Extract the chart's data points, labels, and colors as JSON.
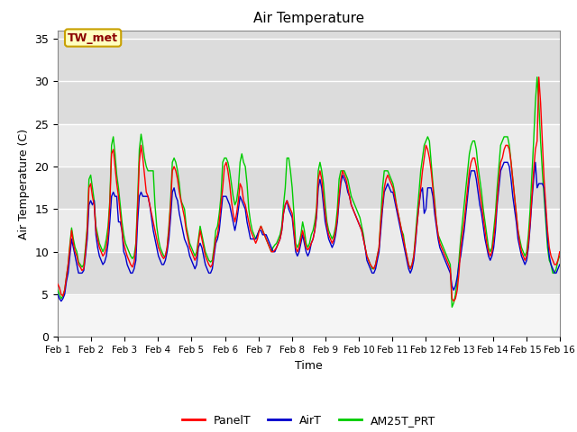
{
  "title": "Air Temperature",
  "xlabel": "Time",
  "ylabel": "Air Temperature (C)",
  "ylim": [
    0,
    36
  ],
  "yticks": [
    0,
    5,
    10,
    15,
    20,
    25,
    30,
    35
  ],
  "x_labels": [
    "Feb 1",
    "Feb 2",
    "Feb 3",
    "Feb 4",
    "Feb 5",
    "Feb 6",
    "Feb 7",
    "Feb 8",
    "Feb 9",
    "Feb 10",
    "Feb 11",
    "Feb 12",
    "Feb 13",
    "Feb 14",
    "Feb 15",
    "Feb 16"
  ],
  "annotation_text": "TW_met",
  "annotation_color": "#8B0000",
  "annotation_bg": "#FFFFC0",
  "annotation_border": "#C8A000",
  "panel_color": "#FF0000",
  "air_color": "#0000CC",
  "am25t_color": "#00CC00",
  "bands": [
    {
      "y": [
        25,
        36
      ],
      "color": "#DCDCDC"
    },
    {
      "y": [
        20,
        25
      ],
      "color": "#EBEBEB"
    },
    {
      "y": [
        15,
        20
      ],
      "color": "#DCDCDC"
    },
    {
      "y": [
        10,
        15
      ],
      "color": "#EBEBEB"
    },
    {
      "y": [
        5,
        10
      ],
      "color": "#DCDCDC"
    }
  ],
  "bg_color": "#FFFFFF",
  "plot_bg": "#F5F5F5",
  "legend_labels": [
    "PanelT",
    "AirT",
    "AM25T_PRT"
  ],
  "panel_data": [
    6.2,
    5.8,
    5.0,
    4.8,
    5.5,
    7.0,
    8.5,
    10.5,
    12.5,
    11.0,
    10.0,
    9.5,
    8.5,
    8.2,
    7.8,
    8.0,
    10.0,
    12.5,
    17.5,
    18.0,
    16.5,
    15.5,
    12.5,
    11.5,
    10.5,
    10.0,
    9.5,
    9.8,
    10.5,
    12.0,
    15.5,
    21.5,
    22.0,
    20.0,
    18.0,
    16.5,
    14.5,
    12.5,
    11.0,
    10.2,
    9.5,
    9.0,
    8.5,
    8.2,
    8.8,
    10.5,
    15.0,
    20.5,
    22.5,
    21.0,
    19.0,
    17.0,
    16.5,
    15.5,
    14.5,
    13.5,
    12.5,
    11.5,
    10.5,
    10.0,
    9.5,
    9.2,
    9.5,
    10.5,
    12.5,
    15.5,
    19.5,
    20.0,
    19.5,
    18.5,
    17.0,
    16.0,
    15.0,
    14.0,
    12.5,
    11.5,
    10.5,
    10.0,
    9.5,
    9.0,
    9.5,
    11.0,
    12.5,
    11.5,
    10.5,
    9.5,
    9.0,
    8.5,
    8.2,
    8.5,
    10.0,
    11.5,
    12.0,
    13.5,
    15.5,
    17.5,
    20.0,
    20.5,
    19.5,
    18.0,
    16.0,
    14.5,
    13.5,
    14.5,
    16.0,
    18.0,
    17.5,
    16.0,
    15.5,
    14.5,
    13.5,
    12.5,
    12.0,
    11.5,
    11.0,
    11.5,
    12.5,
    13.0,
    12.5,
    12.0,
    11.5,
    11.0,
    10.5,
    10.0,
    10.0,
    10.2,
    10.5,
    11.0,
    11.5,
    12.5,
    14.5,
    15.5,
    16.0,
    15.5,
    15.0,
    14.5,
    12.5,
    10.5,
    10.0,
    10.5,
    11.5,
    12.5,
    11.5,
    10.5,
    10.2,
    10.5,
    11.0,
    11.5,
    12.5,
    14.5,
    18.5,
    19.5,
    18.5,
    16.5,
    14.5,
    13.0,
    12.0,
    11.5,
    11.0,
    11.5,
    12.5,
    14.0,
    16.5,
    18.5,
    19.5,
    19.0,
    18.5,
    17.5,
    16.5,
    15.5,
    15.0,
    14.5,
    14.0,
    13.5,
    13.0,
    12.5,
    11.5,
    10.5,
    9.5,
    9.0,
    8.5,
    8.2,
    8.0,
    8.5,
    9.5,
    10.5,
    13.5,
    15.5,
    17.5,
    18.5,
    19.0,
    18.5,
    18.0,
    17.5,
    16.5,
    15.5,
    14.5,
    13.5,
    12.5,
    11.5,
    10.5,
    9.5,
    8.5,
    8.0,
    8.5,
    9.5,
    11.5,
    13.5,
    15.5,
    17.5,
    19.5,
    21.0,
    22.5,
    22.0,
    21.0,
    19.5,
    17.5,
    15.5,
    13.5,
    12.0,
    11.0,
    10.5,
    10.0,
    9.5,
    9.0,
    8.5,
    8.0,
    4.5,
    4.2,
    4.5,
    5.5,
    7.5,
    10.5,
    12.0,
    13.5,
    15.5,
    17.5,
    19.5,
    20.5,
    21.0,
    21.0,
    20.0,
    18.5,
    17.0,
    15.5,
    14.0,
    12.5,
    11.0,
    10.0,
    9.5,
    10.0,
    11.5,
    13.5,
    16.0,
    18.5,
    20.5,
    21.0,
    22.0,
    22.5,
    22.5,
    22.0,
    20.5,
    18.5,
    16.5,
    14.5,
    12.5,
    11.0,
    10.0,
    9.5,
    9.0,
    9.5,
    11.0,
    13.5,
    16.5,
    19.5,
    22.0,
    23.0,
    30.5,
    27.5,
    23.0,
    18.5,
    15.5,
    12.5,
    10.5,
    9.5,
    9.0,
    8.5,
    8.5,
    9.0,
    10.0
  ],
  "air_data": [
    5.0,
    4.5,
    4.2,
    4.5,
    5.0,
    6.5,
    7.5,
    9.5,
    11.5,
    10.5,
    9.5,
    8.5,
    7.5,
    7.5,
    7.5,
    7.8,
    9.5,
    11.5,
    15.5,
    16.0,
    15.5,
    16.0,
    12.0,
    10.5,
    9.5,
    9.0,
    8.5,
    8.8,
    9.5,
    11.0,
    13.5,
    16.5,
    17.0,
    16.5,
    16.5,
    13.5,
    13.5,
    12.5,
    10.0,
    9.5,
    8.5,
    8.0,
    7.5,
    7.5,
    8.0,
    9.0,
    13.5,
    16.5,
    17.0,
    16.5,
    16.5,
    16.5,
    16.5,
    15.5,
    14.0,
    12.5,
    11.5,
    10.5,
    9.5,
    9.0,
    8.5,
    8.5,
    9.0,
    10.0,
    11.5,
    14.0,
    17.0,
    17.5,
    16.5,
    16.0,
    14.5,
    13.5,
    12.5,
    11.5,
    11.0,
    10.5,
    9.5,
    9.0,
    8.5,
    8.0,
    8.5,
    10.5,
    11.0,
    10.5,
    9.5,
    8.5,
    8.0,
    7.5,
    7.5,
    8.0,
    9.5,
    11.0,
    11.5,
    12.5,
    14.5,
    16.5,
    16.5,
    16.5,
    16.0,
    15.5,
    14.5,
    13.5,
    12.5,
    13.5,
    15.0,
    16.5,
    16.0,
    15.5,
    15.0,
    13.5,
    12.5,
    11.5,
    11.5,
    11.5,
    11.5,
    12.0,
    12.5,
    12.5,
    12.0,
    12.0,
    12.0,
    11.5,
    11.0,
    10.5,
    10.0,
    10.0,
    10.5,
    11.0,
    11.5,
    12.5,
    14.5,
    15.5,
    16.0,
    15.0,
    14.5,
    14.0,
    12.0,
    10.0,
    9.5,
    10.0,
    11.0,
    12.0,
    11.0,
    10.0,
    9.5,
    10.0,
    11.0,
    11.5,
    12.5,
    14.0,
    17.5,
    18.5,
    17.5,
    15.5,
    13.5,
    12.5,
    11.5,
    11.0,
    10.5,
    11.0,
    12.0,
    13.5,
    16.0,
    18.0,
    19.0,
    18.5,
    18.0,
    17.0,
    16.5,
    15.5,
    15.0,
    14.5,
    14.0,
    13.5,
    13.0,
    12.5,
    11.5,
    10.5,
    9.0,
    8.5,
    8.0,
    7.5,
    7.5,
    8.0,
    9.0,
    10.0,
    12.5,
    15.0,
    17.0,
    17.5,
    18.0,
    17.5,
    17.0,
    17.0,
    16.0,
    15.0,
    14.0,
    13.0,
    12.0,
    11.0,
    10.0,
    9.0,
    8.0,
    7.5,
    8.0,
    9.0,
    11.0,
    13.5,
    15.5,
    17.0,
    17.5,
    14.5,
    15.0,
    17.5,
    17.5,
    17.5,
    16.5,
    14.5,
    13.0,
    11.5,
    10.5,
    10.0,
    9.5,
    9.0,
    8.5,
    8.0,
    7.5,
    6.0,
    5.5,
    6.0,
    7.0,
    8.5,
    9.5,
    11.0,
    12.5,
    14.5,
    16.5,
    18.5,
    19.5,
    19.5,
    19.5,
    18.5,
    17.0,
    15.5,
    14.5,
    13.0,
    11.5,
    10.5,
    9.5,
    9.0,
    9.5,
    10.5,
    12.5,
    15.5,
    17.5,
    19.5,
    20.0,
    20.5,
    20.5,
    20.5,
    20.0,
    18.5,
    16.5,
    15.0,
    13.5,
    11.5,
    10.5,
    9.5,
    9.0,
    8.5,
    9.0,
    10.5,
    13.0,
    16.0,
    18.5,
    20.5,
    17.5,
    18.0,
    18.0,
    18.0,
    17.5,
    14.5,
    11.5,
    9.5,
    8.5,
    8.0,
    7.5,
    7.5,
    8.0,
    8.5
  ],
  "am25t_data": [
    5.5,
    5.0,
    4.5,
    4.8,
    5.5,
    7.0,
    8.5,
    10.8,
    12.8,
    11.5,
    10.5,
    10.0,
    8.8,
    8.5,
    8.2,
    8.5,
    10.5,
    13.0,
    18.5,
    19.0,
    17.5,
    16.0,
    13.0,
    12.0,
    11.0,
    10.5,
    10.0,
    10.5,
    11.5,
    13.0,
    16.0,
    22.5,
    23.5,
    21.5,
    19.0,
    17.5,
    15.5,
    13.5,
    12.0,
    11.0,
    10.5,
    10.0,
    9.5,
    9.2,
    9.5,
    11.0,
    16.0,
    22.0,
    23.8,
    22.5,
    21.0,
    20.0,
    19.5,
    19.5,
    19.5,
    19.5,
    15.5,
    13.0,
    11.5,
    10.5,
    10.0,
    9.5,
    9.5,
    10.5,
    13.0,
    16.0,
    20.5,
    21.0,
    20.5,
    19.5,
    18.0,
    16.0,
    15.5,
    15.0,
    13.0,
    12.0,
    11.0,
    10.5,
    10.0,
    9.5,
    10.0,
    11.5,
    13.0,
    12.0,
    11.0,
    10.0,
    9.5,
    9.0,
    8.8,
    9.0,
    10.5,
    12.5,
    13.0,
    14.5,
    16.5,
    20.5,
    21.0,
    21.0,
    20.5,
    19.5,
    18.0,
    16.5,
    15.5,
    16.0,
    17.5,
    20.5,
    21.5,
    20.5,
    20.0,
    18.0,
    15.0,
    13.5,
    12.5,
    12.0,
    11.5,
    12.0,
    12.5,
    13.0,
    12.5,
    12.0,
    11.5,
    11.0,
    10.5,
    10.0,
    10.5,
    10.8,
    11.0,
    11.5,
    12.0,
    13.0,
    15.5,
    17.5,
    21.0,
    21.0,
    19.5,
    17.5,
    14.5,
    11.0,
    10.5,
    11.0,
    12.0,
    13.5,
    12.5,
    11.0,
    10.5,
    11.0,
    12.0,
    12.5,
    13.5,
    15.0,
    19.5,
    20.5,
    19.5,
    18.0,
    15.5,
    13.5,
    12.5,
    12.0,
    11.5,
    12.0,
    13.0,
    15.0,
    18.5,
    19.5,
    19.5,
    19.5,
    19.0,
    18.5,
    17.5,
    16.5,
    16.0,
    15.5,
    15.0,
    14.5,
    14.0,
    13.0,
    12.0,
    10.5,
    9.5,
    9.0,
    8.5,
    8.0,
    8.0,
    8.5,
    9.5,
    10.5,
    14.0,
    17.5,
    19.5,
    19.5,
    19.5,
    19.0,
    18.5,
    18.0,
    17.0,
    15.5,
    14.5,
    13.5,
    12.5,
    12.0,
    10.5,
    9.5,
    8.5,
    8.0,
    8.5,
    9.5,
    12.0,
    14.5,
    17.0,
    19.5,
    21.0,
    22.5,
    23.0,
    23.5,
    23.0,
    20.5,
    18.0,
    16.0,
    13.5,
    12.0,
    11.5,
    11.0,
    10.5,
    10.0,
    9.5,
    9.0,
    8.5,
    3.5,
    4.0,
    5.0,
    6.5,
    9.0,
    11.5,
    13.5,
    15.5,
    17.5,
    19.5,
    21.5,
    22.5,
    23.0,
    23.0,
    22.0,
    20.0,
    18.5,
    17.0,
    15.0,
    13.5,
    12.0,
    10.5,
    10.0,
    10.5,
    12.5,
    14.5,
    17.5,
    20.0,
    22.5,
    23.0,
    23.5,
    23.5,
    23.5,
    22.5,
    20.5,
    18.5,
    16.5,
    14.5,
    12.5,
    11.5,
    10.5,
    10.0,
    9.5,
    10.0,
    12.0,
    15.0,
    19.0,
    23.0,
    27.5,
    30.5,
    27.5,
    23.0,
    19.5,
    16.5,
    13.5,
    10.5,
    9.0,
    8.5,
    7.5,
    7.5,
    8.0,
    9.0,
    9.5
  ]
}
